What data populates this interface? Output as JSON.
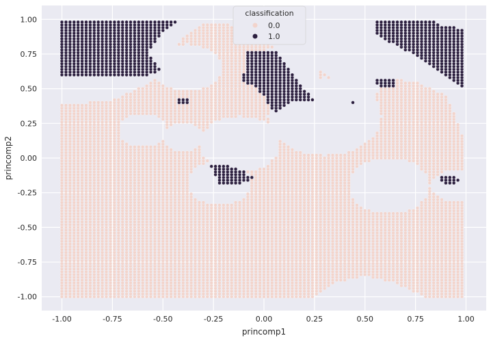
{
  "chart_data": {
    "type": "scatter",
    "title": "",
    "xlabel": "princomp1",
    "ylabel": "princomp2",
    "xlim": [
      -1.1,
      1.1
    ],
    "ylim": [
      -1.1,
      1.1
    ],
    "xticks": [
      "-1.00",
      "-0.75",
      "-0.50",
      "-0.25",
      "0.00",
      "0.25",
      "0.50",
      "0.75",
      "1.00"
    ],
    "yticks": [
      "1.00",
      "0.75",
      "0.50",
      "0.25",
      "0.00",
      "-0.25",
      "-0.50",
      "-0.75",
      "-1.00"
    ],
    "grid": true,
    "grid_sampling_step": 0.02,
    "legend": {
      "title": "classification",
      "placement": "top-center",
      "entries": [
        {
          "label": "0.0",
          "color": "#f2d4cc"
        },
        {
          "label": "1.0",
          "color": "#2c1f3f"
        }
      ]
    },
    "colors": {
      "class_0": "#f2d4cc",
      "class_1": "#2c1f3f",
      "background": "#eaeaf2",
      "grid": "#ffffff"
    },
    "series": [
      {
        "name": "0.0",
        "region_description": "dense grid of points filling the domain except empty circular holes",
        "fill_polygon": [
          [
            -1.0,
            -1.0
          ],
          [
            0.25,
            -1.0
          ],
          [
            0.35,
            -0.9
          ],
          [
            0.5,
            -0.85
          ],
          [
            0.65,
            -0.9
          ],
          [
            0.8,
            -1.0
          ],
          [
            1.0,
            -1.0
          ],
          [
            1.0,
            0.1
          ],
          [
            0.95,
            0.3
          ],
          [
            0.9,
            0.45
          ],
          [
            0.75,
            0.55
          ],
          [
            0.6,
            0.58
          ],
          [
            0.55,
            0.45
          ],
          [
            0.5,
            0.3
          ],
          [
            0.45,
            0.45
          ],
          [
            0.3,
            0.62
          ],
          [
            0.18,
            0.72
          ],
          [
            0.05,
            0.8
          ],
          [
            -0.1,
            0.95
          ],
          [
            -0.3,
            0.98
          ],
          [
            -0.45,
            0.8
          ],
          [
            -0.55,
            0.55
          ],
          [
            -0.75,
            0.42
          ],
          [
            -1.0,
            0.38
          ]
        ],
        "holes": [
          {
            "center": [
              -0.22,
              -0.18
            ],
            "radius": 0.16
          },
          {
            "center": [
              -0.4,
              0.15
            ],
            "radius": 0.1
          },
          {
            "center": [
              -0.6,
              0.2
            ],
            "radius": 0.12
          },
          {
            "center": [
              -0.12,
              0.1
            ],
            "radius": 0.2
          },
          {
            "center": [
              0.3,
              0.3
            ],
            "radius": 0.28
          },
          {
            "center": [
              -0.38,
              0.65
            ],
            "radius": 0.17
          },
          {
            "center": [
              0.1,
              0.62
            ],
            "radius": 0.18
          },
          {
            "center": [
              0.62,
              -0.2
            ],
            "radius": 0.2
          },
          {
            "center": [
              0.95,
              -0.2
            ],
            "radius": 0.12
          },
          {
            "center": [
              0.5,
              -1.0
            ],
            "radius": 0.1
          }
        ]
      },
      {
        "name": "1.0",
        "region_description": "dense grid of points in several dark patches",
        "patches": [
          {
            "polygon": [
              [
                -1.0,
                1.0
              ],
              [
                -0.42,
                1.0
              ],
              [
                -0.5,
                0.9
              ],
              [
                -0.58,
                0.75
              ],
              [
                -0.5,
                0.63
              ],
              [
                -0.62,
                0.58
              ],
              [
                -0.8,
                0.6
              ],
              [
                -1.0,
                0.58
              ]
            ]
          },
          {
            "polygon": [
              [
                0.55,
                1.0
              ],
              [
                0.8,
                1.0
              ],
              [
                0.9,
                0.95
              ],
              [
                1.0,
                0.93
              ],
              [
                1.0,
                0.5
              ],
              [
                0.9,
                0.6
              ],
              [
                0.8,
                0.7
              ],
              [
                0.7,
                0.78
              ],
              [
                0.6,
                0.85
              ],
              [
                0.55,
                0.9
              ]
            ]
          },
          {
            "polygon": [
              [
                -0.08,
                0.78
              ],
              [
                0.05,
                0.78
              ],
              [
                0.1,
                0.7
              ],
              [
                0.15,
                0.6
              ],
              [
                0.2,
                0.5
              ],
              [
                0.25,
                0.42
              ],
              [
                0.15,
                0.42
              ],
              [
                0.05,
                0.32
              ],
              [
                0.0,
                0.45
              ],
              [
                -0.05,
                0.52
              ],
              [
                -0.12,
                0.55
              ],
              [
                -0.08,
                0.65
              ]
            ]
          },
          {
            "polygon": [
              [
                -0.27,
                -0.04
              ],
              [
                -0.18,
                -0.05
              ],
              [
                -0.12,
                -0.08
              ],
              [
                -0.05,
                -0.15
              ],
              [
                -0.1,
                -0.18
              ],
              [
                -0.18,
                -0.2
              ],
              [
                -0.22,
                -0.18
              ]
            ]
          },
          {
            "polygon": [
              [
                0.55,
                0.58
              ],
              [
                0.66,
                0.58
              ],
              [
                0.66,
                0.52
              ],
              [
                0.6,
                0.51
              ],
              [
                0.55,
                0.53
              ]
            ]
          },
          {
            "polygon": [
              [
                0.88,
                -0.12
              ],
              [
                0.95,
                -0.12
              ],
              [
                0.97,
                -0.17
              ],
              [
                0.94,
                -0.2
              ],
              [
                0.88,
                -0.17
              ]
            ]
          },
          {
            "polygon": [
              [
                -0.43,
                0.44
              ],
              [
                -0.37,
                0.43
              ],
              [
                -0.37,
                0.4
              ],
              [
                -0.43,
                0.4
              ]
            ]
          },
          {
            "polygon": [
              [
                0.44,
                0.41
              ],
              [
                0.46,
                0.4
              ],
              [
                0.45,
                0.38
              ],
              [
                0.43,
                0.39
              ]
            ]
          }
        ]
      }
    ]
  }
}
